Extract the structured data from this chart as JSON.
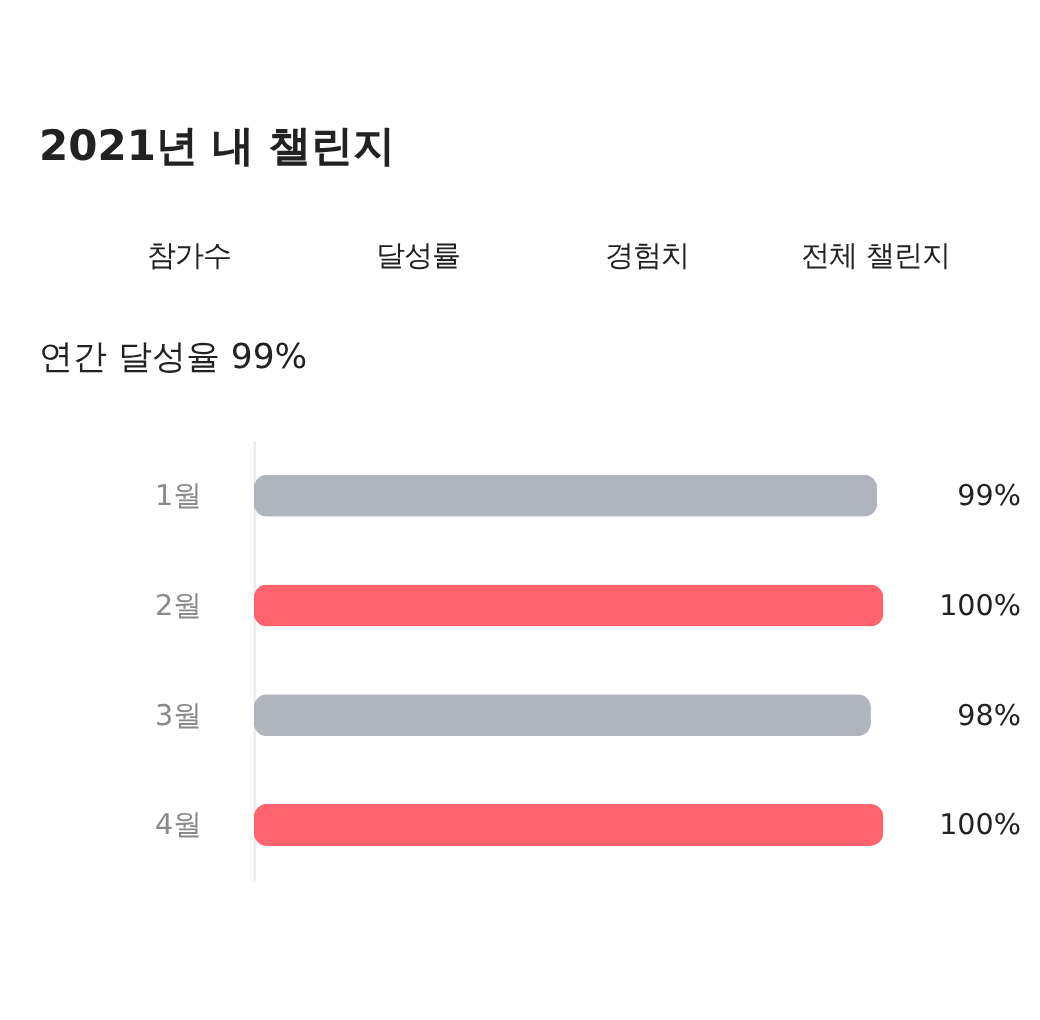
{
  "chart_data": {
    "type": "bar",
    "orientation": "horizontal",
    "title": "2021년 내 챌린지",
    "subtitle": "연간 달성율 99%",
    "annotations": [
      "참가수",
      "달성률",
      "경험치",
      "전체 챌린지"
    ],
    "categories": [
      "1월",
      "2월",
      "3월",
      "4월"
    ],
    "values": [
      99,
      100,
      98,
      100
    ],
    "colors": [
      "#b0b5bd",
      "#ff636e",
      "#b0b5bd",
      "#ff636e"
    ],
    "value_labels": [
      "99%",
      "100%",
      "98%",
      "100%"
    ]
  }
}
